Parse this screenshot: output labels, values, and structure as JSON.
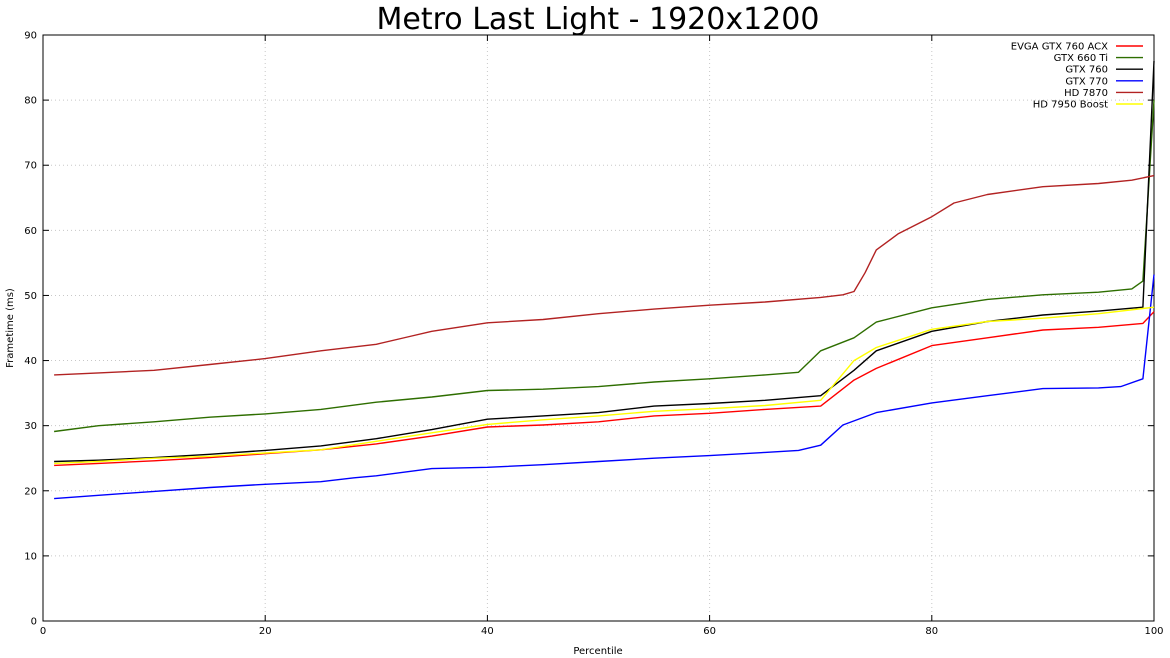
{
  "chart_data": {
    "type": "line",
    "title": "Metro Last Light - 1920x1200",
    "xlabel": "Percentile",
    "ylabel": "Frametime (ms)",
    "xlim": [
      0,
      100
    ],
    "ylim": [
      0,
      90
    ],
    "xticks": [
      0,
      20,
      40,
      60,
      80,
      100
    ],
    "yticks": [
      0,
      10,
      20,
      30,
      40,
      50,
      60,
      70,
      80,
      90
    ],
    "grid": true,
    "legend_position": "top-right",
    "series": [
      {
        "name": "EVGA GTX 760 ACX",
        "color": "#ff0000",
        "points": [
          [
            1,
            23.9
          ],
          [
            5,
            24.2
          ],
          [
            10,
            24.6
          ],
          [
            15,
            25.1
          ],
          [
            20,
            25.7
          ],
          [
            25,
            26.3
          ],
          [
            30,
            27.2
          ],
          [
            35,
            28.4
          ],
          [
            40,
            29.8
          ],
          [
            45,
            30.1
          ],
          [
            50,
            30.6
          ],
          [
            55,
            31.5
          ],
          [
            60,
            31.9
          ],
          [
            65,
            32.5
          ],
          [
            70,
            33.0
          ],
          [
            73,
            37.0
          ],
          [
            75,
            38.8
          ],
          [
            80,
            42.3
          ],
          [
            85,
            43.5
          ],
          [
            90,
            44.7
          ],
          [
            95,
            45.1
          ],
          [
            99,
            45.7
          ],
          [
            100,
            47.5
          ]
        ]
      },
      {
        "name": "GTX 660 Ti",
        "color": "#2e6e00",
        "points": [
          [
            1,
            29.1
          ],
          [
            5,
            30.0
          ],
          [
            10,
            30.6
          ],
          [
            15,
            31.3
          ],
          [
            20,
            31.8
          ],
          [
            25,
            32.5
          ],
          [
            30,
            33.6
          ],
          [
            35,
            34.4
          ],
          [
            40,
            35.4
          ],
          [
            45,
            35.6
          ],
          [
            50,
            36.0
          ],
          [
            55,
            36.7
          ],
          [
            60,
            37.2
          ],
          [
            65,
            37.8
          ],
          [
            68,
            38.2
          ],
          [
            70,
            41.5
          ],
          [
            73,
            43.5
          ],
          [
            75,
            45.9
          ],
          [
            80,
            48.1
          ],
          [
            85,
            49.4
          ],
          [
            90,
            50.1
          ],
          [
            95,
            50.5
          ],
          [
            98,
            51.0
          ],
          [
            99,
            52.2
          ],
          [
            100,
            80.0
          ]
        ]
      },
      {
        "name": "GTX 760",
        "color": "#000000",
        "points": [
          [
            1,
            24.5
          ],
          [
            5,
            24.7
          ],
          [
            10,
            25.1
          ],
          [
            15,
            25.6
          ],
          [
            20,
            26.2
          ],
          [
            25,
            26.9
          ],
          [
            30,
            28.0
          ],
          [
            35,
            29.4
          ],
          [
            40,
            31.0
          ],
          [
            45,
            31.5
          ],
          [
            50,
            32.0
          ],
          [
            55,
            33.0
          ],
          [
            60,
            33.4
          ],
          [
            65,
            33.9
          ],
          [
            70,
            34.6
          ],
          [
            73,
            38.5
          ],
          [
            75,
            41.5
          ],
          [
            80,
            44.5
          ],
          [
            85,
            46.0
          ],
          [
            90,
            47.0
          ],
          [
            95,
            47.6
          ],
          [
            99,
            48.2
          ],
          [
            100,
            86.0
          ]
        ]
      },
      {
        "name": "GTX 770",
        "color": "#0000ff",
        "points": [
          [
            1,
            18.8
          ],
          [
            5,
            19.3
          ],
          [
            10,
            19.9
          ],
          [
            15,
            20.5
          ],
          [
            20,
            21.0
          ],
          [
            25,
            21.4
          ],
          [
            28,
            22.0
          ],
          [
            30,
            22.3
          ],
          [
            35,
            23.4
          ],
          [
            40,
            23.6
          ],
          [
            45,
            24.0
          ],
          [
            50,
            24.5
          ],
          [
            55,
            25.0
          ],
          [
            60,
            25.4
          ],
          [
            65,
            25.9
          ],
          [
            68,
            26.2
          ],
          [
            70,
            27.0
          ],
          [
            72,
            30.1
          ],
          [
            75,
            32.0
          ],
          [
            80,
            33.5
          ],
          [
            85,
            34.6
          ],
          [
            90,
            35.7
          ],
          [
            95,
            35.8
          ],
          [
            97,
            36.0
          ],
          [
            99,
            37.2
          ],
          [
            100,
            53.2
          ]
        ]
      },
      {
        "name": "HD 7870",
        "color": "#b22222",
        "points": [
          [
            1,
            37.8
          ],
          [
            5,
            38.1
          ],
          [
            10,
            38.5
          ],
          [
            15,
            39.4
          ],
          [
            20,
            40.3
          ],
          [
            25,
            41.5
          ],
          [
            30,
            42.5
          ],
          [
            33,
            43.7
          ],
          [
            35,
            44.5
          ],
          [
            40,
            45.8
          ],
          [
            45,
            46.3
          ],
          [
            50,
            47.2
          ],
          [
            55,
            47.9
          ],
          [
            60,
            48.5
          ],
          [
            65,
            49.0
          ],
          [
            70,
            49.7
          ],
          [
            72,
            50.1
          ],
          [
            73,
            50.6
          ],
          [
            74,
            53.5
          ],
          [
            75,
            57.0
          ],
          [
            77,
            59.5
          ],
          [
            80,
            62.1
          ],
          [
            82,
            64.2
          ],
          [
            85,
            65.5
          ],
          [
            90,
            66.7
          ],
          [
            95,
            67.2
          ],
          [
            98,
            67.7
          ],
          [
            100,
            68.4
          ]
        ]
      },
      {
        "name": "HD 7950 Boost",
        "color": "#ffff00",
        "points": [
          [
            1,
            24.2
          ],
          [
            5,
            24.5
          ],
          [
            10,
            25.0
          ],
          [
            15,
            25.3
          ],
          [
            20,
            25.8
          ],
          [
            25,
            26.3
          ],
          [
            30,
            27.6
          ],
          [
            35,
            28.9
          ],
          [
            40,
            30.2
          ],
          [
            45,
            30.9
          ],
          [
            50,
            31.5
          ],
          [
            55,
            32.2
          ],
          [
            60,
            32.6
          ],
          [
            65,
            33.1
          ],
          [
            70,
            33.9
          ],
          [
            73,
            40.0
          ],
          [
            75,
            42.0
          ],
          [
            80,
            44.8
          ],
          [
            85,
            46.0
          ],
          [
            90,
            46.5
          ],
          [
            95,
            47.2
          ],
          [
            99,
            48.0
          ],
          [
            100,
            48.2
          ]
        ]
      }
    ]
  }
}
